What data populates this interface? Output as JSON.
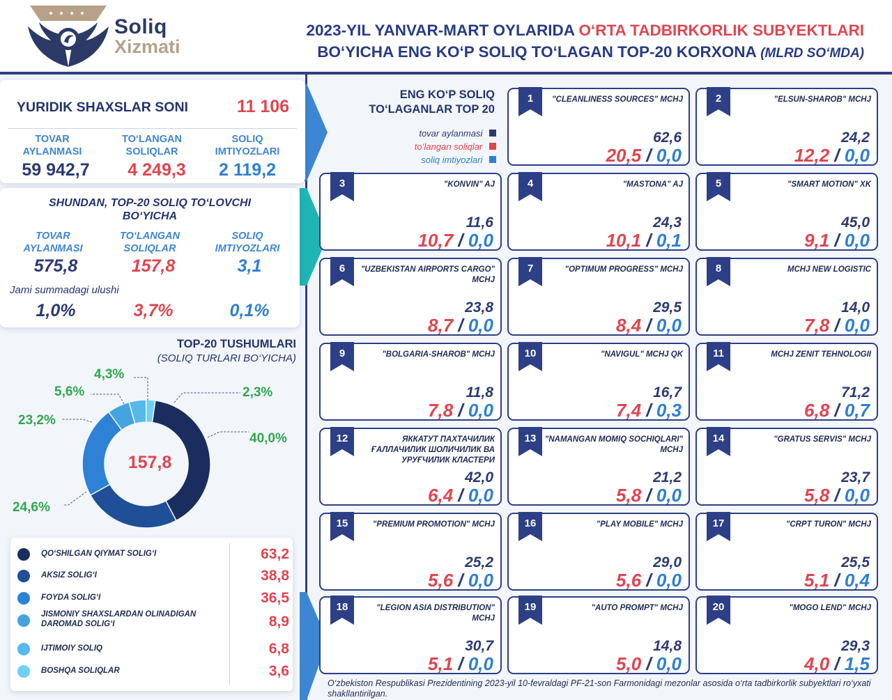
{
  "brand": {
    "line1": "Soliq",
    "line2": "Xizmati"
  },
  "title": {
    "part1": "2023-YIL YANVAR-MART OYLARIDA ",
    "part1_red": "O‘RTA TADBIRKORLIK SUBYEKTLARI",
    "part2": "BO‘YICHA ENG KO‘P SOLIQ TO‘LAGAN TOP-20 KORXONA ",
    "unit": "(MLRD SO‘MDA)"
  },
  "summary": {
    "entities_label": "YURIDIK SHAXSLAR SONI",
    "entities_value": "11 106",
    "turnover_label": "TOVAR AYLANMASI",
    "paid_label": "TO‘LANGAN SOLIQLAR",
    "exempt_label": "SOLIQ IMTIYOZLARI",
    "turnover": "59 942,7",
    "paid": "4 249,3",
    "exempt": "2 119,2"
  },
  "top20_summary": {
    "heading": "SHUNDAN, TOP-20 SOLIQ TO‘LOVCHI BO‘YICHA",
    "turnover_label": "TOVAR AYLANMASI",
    "paid_label": "TO‘LANGAN SOLIQLAR",
    "exempt_label": "SOLIQ IMTIYOZLARI",
    "turnover": "575,8",
    "paid": "157,8",
    "exempt": "3,1",
    "share_label": "Jami summadagi ulushi",
    "share_turnover": "1,0%",
    "share_paid": "3,7%",
    "share_exempt": "0,1%"
  },
  "legend_top": {
    "heading1": "ENG KO‘P SOLIQ",
    "heading2": "TO‘LAGANLAR TOP 20",
    "turnover": "tovar aylanmasi",
    "paid": "to‘langan soliqlar",
    "exempt": "soliq imtiyozlari"
  },
  "colors": {
    "navy": "#2b3a72",
    "red": "#e04550",
    "blue": "#2f7fd1",
    "green": "#2fa84f"
  },
  "companies": [
    {
      "rank": "1",
      "name": "\"CLEANLINESS SOURCES\" MCHJ",
      "turnover": "62,6",
      "paid": "20,5",
      "exempt": "0,0"
    },
    {
      "rank": "2",
      "name": "\"ELSUN-SHAROB\" MCHJ",
      "turnover": "24,2",
      "paid": "12,2",
      "exempt": "0,0"
    },
    {
      "rank": "3",
      "name": "\"KONVIN\" AJ",
      "turnover": "11,6",
      "paid": "10,7",
      "exempt": "0,0"
    },
    {
      "rank": "4",
      "name": "\"MASTONA\" AJ",
      "turnover": "24,3",
      "paid": "10,1",
      "exempt": "0,1"
    },
    {
      "rank": "5",
      "name": "\"SMART MOTION\" XK",
      "turnover": "45,0",
      "paid": "9,1",
      "exempt": "0,0"
    },
    {
      "rank": "6",
      "name": "\"UZBEKISTAN AIRPORTS CARGO\" MCHJ",
      "turnover": "23,8",
      "paid": "8,7",
      "exempt": "0,0"
    },
    {
      "rank": "7",
      "name": "\"OPTIMUM PROGRESS\" MCHJ",
      "turnover": "29,5",
      "paid": "8,4",
      "exempt": "0,0"
    },
    {
      "rank": "8",
      "name": "MCHJ NEW LOGISTIC",
      "turnover": "14,0",
      "paid": "7,8",
      "exempt": "0,0"
    },
    {
      "rank": "9",
      "name": "\"BOLGARIA-SHAROB\" MCHJ",
      "turnover": "11,8",
      "paid": "7,8",
      "exempt": "0,0"
    },
    {
      "rank": "10",
      "name": "\"NAVIGUL\" MCHJ QK",
      "turnover": "16,7",
      "paid": "7,4",
      "exempt": "0,3"
    },
    {
      "rank": "11",
      "name": "MCHJ ZENIT TEHNOLOGII",
      "turnover": "71,2",
      "paid": "6,8",
      "exempt": "0,7"
    },
    {
      "rank": "12",
      "name": "ЯККАТУТ ПАХТАЧИЛИК ҒАЛЛАЧИЛИК ШОЛИЧИЛИК ВА УРУҒЧИЛИК КЛАСТЕРИ",
      "turnover": "42,0",
      "paid": "6,4",
      "exempt": "0,0"
    },
    {
      "rank": "13",
      "name": "\"NAMANGAN MOMIQ SOCHIQLARI\" MCHJ",
      "turnover": "21,2",
      "paid": "5,8",
      "exempt": "0,0"
    },
    {
      "rank": "14",
      "name": "\"GRATUS SERVIS\" MCHJ",
      "turnover": "23,7",
      "paid": "5,8",
      "exempt": "0,0"
    },
    {
      "rank": "15",
      "name": "\"PREMIUM PROMOTION\" MCHJ",
      "turnover": "25,2",
      "paid": "5,6",
      "exempt": "0,0"
    },
    {
      "rank": "16",
      "name": "\"PLAY MOBILE\" MCHJ",
      "turnover": "29,0",
      "paid": "5,6",
      "exempt": "0,0"
    },
    {
      "rank": "17",
      "name": "\"CRPT TURON\" MCHJ",
      "turnover": "25,5",
      "paid": "5,1",
      "exempt": "0,4"
    },
    {
      "rank": "18",
      "name": "\"LEGION ASIA DISTRIBUTION\" MCHJ",
      "turnover": "30,7",
      "paid": "5,1",
      "exempt": "0,0"
    },
    {
      "rank": "19",
      "name": "\"AUTO PROMPT\" MCHJ",
      "turnover": "14,8",
      "paid": "5,0",
      "exempt": "0,0"
    },
    {
      "rank": "20",
      "name": "\"MOGO LEND\" MCHJ",
      "turnover": "29,3",
      "paid": "4,0",
      "exempt": "1,5"
    }
  ],
  "footnote": "O‘zbekiston Respublikasi Prezidentining 2023-yil 10-fevraldagi PF-21-son Farmonidagi mezonlar asosida o‘rta tadbirkorlik subyektlari ro‘yxati shakllantirilgan.",
  "chart_data": {
    "type": "pie",
    "title": "TOP-20 TUSHUMLARI",
    "subtitle": "(SOLIQ TURLARI BO‘YICHA)",
    "center_label": "157,8",
    "categories": [
      "QO‘SHILGAN QIYMAT SOLIG‘I",
      "AKSIZ SOLIG‘I",
      "FOYDA SOLIG‘I",
      "JISMONIY SHAXSLARDAN OLINADIGAN DAROMAD SOLIG‘I",
      "IJTIMOIY SOLIQ",
      "BOSHQA SOLIQLAR"
    ],
    "values": [
      63.2,
      38.8,
      36.5,
      8.9,
      6.8,
      3.6
    ],
    "value_labels": [
      "63,2",
      "38,8",
      "36,5",
      "8,9",
      "6,8",
      "3,6"
    ],
    "percent_labels": [
      "40,0%",
      "24,6%",
      "23,2%",
      "5,6%",
      "4,3%",
      "2,3%"
    ],
    "colors": [
      "#1a2d5e",
      "#1f4f96",
      "#2d82d6",
      "#44a4e0",
      "#56b9ea",
      "#6fd0f4"
    ]
  }
}
